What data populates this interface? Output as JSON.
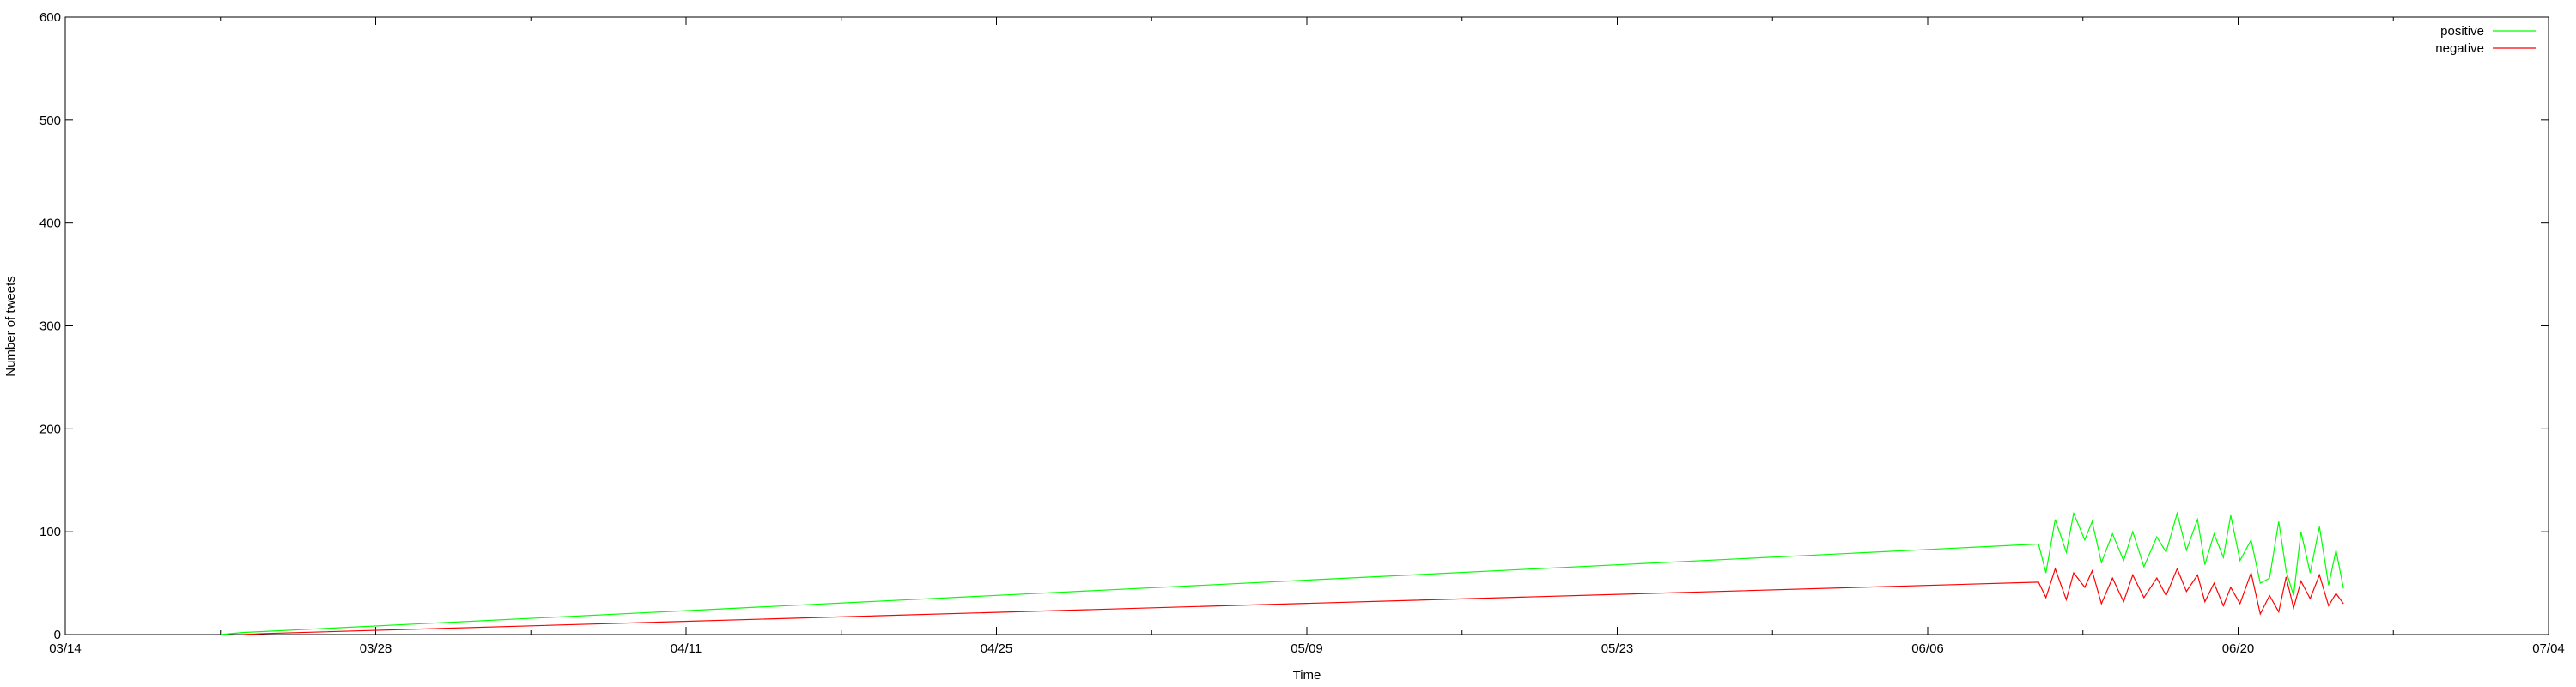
{
  "chart_data": {
    "type": "line",
    "title": "",
    "xlabel": "Time",
    "ylabel": "Number of tweets",
    "x_axis": {
      "kind": "date",
      "year": 2014,
      "min": "2014-03-14",
      "max": "2014-07-04",
      "ticks": [
        "03/14",
        "03/28",
        "04/11",
        "04/25",
        "05/09",
        "05/23",
        "06/06",
        "06/20",
        "07/04"
      ]
    },
    "y_axis": {
      "min": 0,
      "max": 600,
      "ticks": [
        0,
        100,
        200,
        300,
        400,
        500,
        600
      ]
    },
    "grid": false,
    "legend_position": "top-right",
    "series": [
      {
        "name": "positive",
        "color": "#00ff00",
        "points": [
          [
            "2014-03-21T00:00",
            0
          ],
          [
            "2014-03-22T00:00",
            2
          ],
          [
            "2014-06-11T00:00",
            88
          ],
          [
            "2014-06-11T08:00",
            60
          ],
          [
            "2014-06-11T18:00",
            112
          ],
          [
            "2014-06-12T06:00",
            80
          ],
          [
            "2014-06-12T14:00",
            118
          ],
          [
            "2014-06-13T02:00",
            92
          ],
          [
            "2014-06-13T10:00",
            110
          ],
          [
            "2014-06-13T20:00",
            70
          ],
          [
            "2014-06-14T08:00",
            98
          ],
          [
            "2014-06-14T20:00",
            72
          ],
          [
            "2014-06-15T06:00",
            100
          ],
          [
            "2014-06-15T18:00",
            66
          ],
          [
            "2014-06-16T08:00",
            95
          ],
          [
            "2014-06-16T18:00",
            80
          ],
          [
            "2014-06-17T06:00",
            118
          ],
          [
            "2014-06-17T16:00",
            82
          ],
          [
            "2014-06-18T04:00",
            112
          ],
          [
            "2014-06-18T12:00",
            68
          ],
          [
            "2014-06-18T22:00",
            98
          ],
          [
            "2014-06-19T08:00",
            75
          ],
          [
            "2014-06-19T16:00",
            116
          ],
          [
            "2014-06-20T02:00",
            72
          ],
          [
            "2014-06-20T14:00",
            92
          ],
          [
            "2014-06-21T00:00",
            50
          ],
          [
            "2014-06-21T10:00",
            55
          ],
          [
            "2014-06-21T20:00",
            110
          ],
          [
            "2014-06-22T04:00",
            62
          ],
          [
            "2014-06-22T12:00",
            38
          ],
          [
            "2014-06-22T20:00",
            100
          ],
          [
            "2014-06-23T06:00",
            60
          ],
          [
            "2014-06-23T16:00",
            105
          ],
          [
            "2014-06-24T02:00",
            48
          ],
          [
            "2014-06-24T10:00",
            82
          ],
          [
            "2014-06-24T18:00",
            45
          ]
        ]
      },
      {
        "name": "negative",
        "color": "#ff0000",
        "points": [
          [
            "2014-03-22T00:00",
            0
          ],
          [
            "2014-03-23T00:00",
            1
          ],
          [
            "2014-06-11T00:00",
            51
          ],
          [
            "2014-06-11T08:00",
            36
          ],
          [
            "2014-06-11T18:00",
            64
          ],
          [
            "2014-06-12T06:00",
            34
          ],
          [
            "2014-06-12T14:00",
            60
          ],
          [
            "2014-06-13T02:00",
            46
          ],
          [
            "2014-06-13T10:00",
            62
          ],
          [
            "2014-06-13T20:00",
            30
          ],
          [
            "2014-06-14T08:00",
            55
          ],
          [
            "2014-06-14T20:00",
            32
          ],
          [
            "2014-06-15T06:00",
            58
          ],
          [
            "2014-06-15T18:00",
            36
          ],
          [
            "2014-06-16T08:00",
            55
          ],
          [
            "2014-06-16T18:00",
            38
          ],
          [
            "2014-06-17T06:00",
            64
          ],
          [
            "2014-06-17T16:00",
            42
          ],
          [
            "2014-06-18T04:00",
            58
          ],
          [
            "2014-06-18T12:00",
            32
          ],
          [
            "2014-06-18T22:00",
            50
          ],
          [
            "2014-06-19T08:00",
            28
          ],
          [
            "2014-06-19T16:00",
            46
          ],
          [
            "2014-06-20T02:00",
            30
          ],
          [
            "2014-06-20T14:00",
            60
          ],
          [
            "2014-06-21T00:00",
            20
          ],
          [
            "2014-06-21T10:00",
            38
          ],
          [
            "2014-06-21T20:00",
            22
          ],
          [
            "2014-06-22T04:00",
            56
          ],
          [
            "2014-06-22T12:00",
            26
          ],
          [
            "2014-06-22T20:00",
            52
          ],
          [
            "2014-06-23T06:00",
            35
          ],
          [
            "2014-06-23T16:00",
            58
          ],
          [
            "2014-06-24T02:00",
            28
          ],
          [
            "2014-06-24T10:00",
            40
          ],
          [
            "2014-06-24T18:00",
            30
          ]
        ]
      }
    ]
  }
}
